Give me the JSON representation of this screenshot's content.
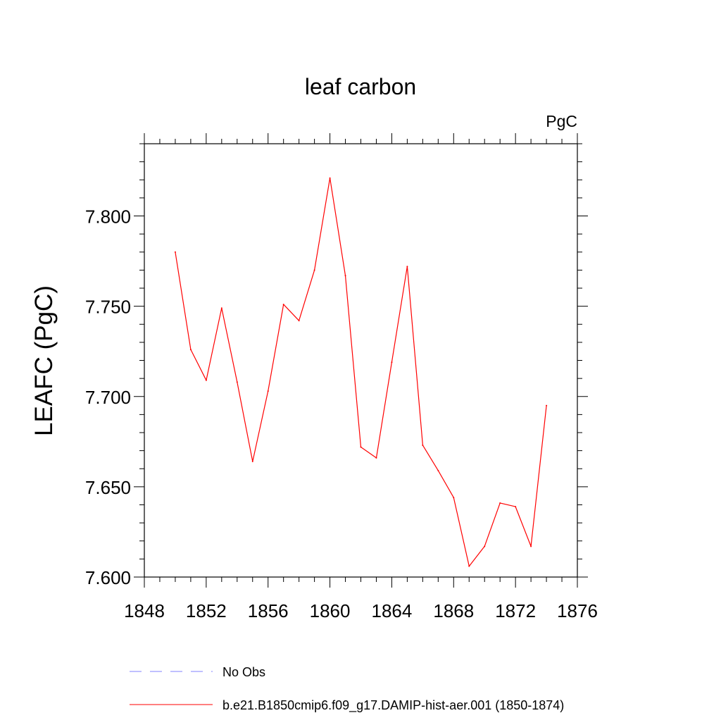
{
  "chart_data": {
    "type": "line",
    "title": "leaf carbon",
    "units_label": "PgC",
    "ylabel": "LEAFC  (PgC)",
    "xlabel": "",
    "xlim": [
      1848,
      1876
    ],
    "ylim": [
      7.6,
      7.84
    ],
    "x_ticks": [
      1848,
      1852,
      1856,
      1860,
      1864,
      1868,
      1872,
      1876
    ],
    "x_tick_labels": [
      "1848",
      "1852",
      "1856",
      "1860",
      "1864",
      "1868",
      "1872",
      "1876"
    ],
    "y_ticks": [
      7.6,
      7.65,
      7.7,
      7.75,
      7.8
    ],
    "y_tick_labels": [
      "7.600",
      "7.650",
      "7.700",
      "7.750",
      "7.800"
    ],
    "grid": false,
    "legend_position": "bottom",
    "series": [
      {
        "name": "b.e21.B1850cmip6.f09_g17.DAMIP-hist-aer.001 (1850-1874)",
        "color": "#ff0000",
        "style": "solid",
        "x": [
          1850,
          1851,
          1852,
          1853,
          1854,
          1855,
          1856,
          1857,
          1858,
          1859,
          1860,
          1861,
          1862,
          1863,
          1864,
          1865,
          1866,
          1867,
          1868,
          1869,
          1870,
          1871,
          1872,
          1873,
          1874
        ],
        "values": [
          7.78,
          7.726,
          7.709,
          7.749,
          7.708,
          7.664,
          7.703,
          7.751,
          7.742,
          7.77,
          7.821,
          7.767,
          7.672,
          7.666,
          7.719,
          7.772,
          7.673,
          7.659,
          7.644,
          7.606,
          7.617,
          7.641,
          7.639,
          7.617,
          7.695
        ]
      }
    ],
    "legend": [
      {
        "label": "No Obs",
        "color": "#8080ff",
        "style": "dashed"
      },
      {
        "label": "b.e21.B1850cmip6.f09_g17.DAMIP-hist-aer.001 (1850-1874)",
        "color": "#ff0000",
        "style": "solid"
      }
    ]
  }
}
